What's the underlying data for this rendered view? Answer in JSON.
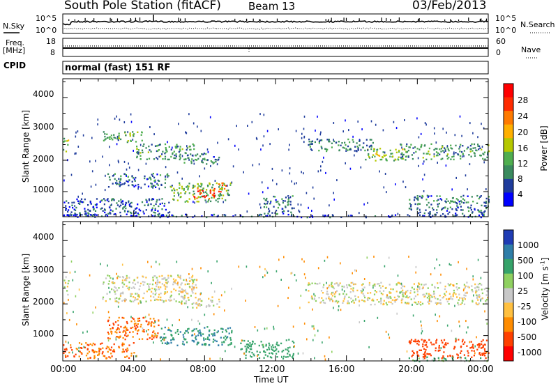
{
  "header": {
    "station": "South Pole Station (fitACF)",
    "beam": "Beam 13",
    "date": "03/Feb/2013"
  },
  "noise_panel": {
    "left_label": "N.Sky",
    "right_label": "N.Search",
    "left_ticks": [
      "10^5",
      "10^0"
    ],
    "right_ticks": [
      "10^5",
      "10^0"
    ]
  },
  "freq_panel": {
    "left_label_1": "Freq.",
    "left_label_2": "[MHz]",
    "right_label": "Nave",
    "left_ticks": [
      "18",
      "8"
    ],
    "right_ticks": [
      "60",
      "0"
    ]
  },
  "cpid_panel": {
    "label": "CPID",
    "text": "normal (fast) 151 RF"
  },
  "power_panel": {
    "ylabel": "Slant Range [km]",
    "yticks": [
      "4000",
      "3000",
      "2000",
      "1000"
    ],
    "colorbar_label": "Power [dB]",
    "colorbar_ticks": [
      "28",
      "24",
      "20",
      "16",
      "12",
      "8",
      "4"
    ],
    "colors": [
      "#0000ff",
      "#1f3c9c",
      "#3a8a5e",
      "#4fae4f",
      "#b5c800",
      "#ffb000",
      "#ff7a00",
      "#ff2b00",
      "#ff0000"
    ]
  },
  "velocity_panel": {
    "ylabel": "Slant Range [km]",
    "yticks": [
      "4000",
      "3000",
      "2000",
      "1000"
    ],
    "colorbar_label": "Velocity [m s",
    "colorbar_label_sup": "-1",
    "colorbar_label_end": "]",
    "colorbar_ticks": [
      "1000",
      "500",
      "100",
      "25",
      "-25",
      "-100",
      "-500",
      "-1000"
    ],
    "colors": [
      "#1f3cb4",
      "#2f7ea8",
      "#36a36a",
      "#8fd060",
      "#c8c8c8",
      "#ffc040",
      "#ff8c00",
      "#ff4000",
      "#ff0000"
    ]
  },
  "x_axis": {
    "ticks": [
      "00:00",
      "04:00",
      "08:00",
      "12:00",
      "16:00",
      "20:00",
      "00:00"
    ],
    "label": "Time UT"
  },
  "chart_data": {
    "type": "heatmap",
    "title": "South Pole Station (fitACF)",
    "subtitle": "Beam 13",
    "date": "03/Feb/2013",
    "xlabel": "Time UT",
    "ylabel": "Slant Range [km]",
    "xlim_hours": [
      0,
      24
    ],
    "ylim_km": [
      200,
      4600
    ],
    "grid": false,
    "panels": [
      {
        "name": "Power",
        "units": "dB",
        "colorbar_range": [
          0,
          32
        ],
        "regions": [
          {
            "t0": 0.0,
            "t1": 0.3,
            "r0": 2300,
            "r1": 2800,
            "value": 14
          },
          {
            "t0": 2.2,
            "t1": 4.5,
            "r0": 2600,
            "r1": 2950,
            "value": 12
          },
          {
            "t0": 4.0,
            "t1": 7.5,
            "r0": 2050,
            "r1": 2550,
            "value": 10
          },
          {
            "t0": 6.8,
            "t1": 8.8,
            "r0": 1900,
            "r1": 2250,
            "value": 8
          },
          {
            "t0": 2.5,
            "t1": 6.0,
            "r0": 1150,
            "r1": 1600,
            "value": 7
          },
          {
            "t0": 6.0,
            "t1": 9.5,
            "r0": 700,
            "r1": 1300,
            "value": 12
          },
          {
            "t0": 7.3,
            "t1": 8.6,
            "r0": 800,
            "r1": 1150,
            "value": 26
          },
          {
            "t0": 8.6,
            "t1": 9.2,
            "r0": 1000,
            "r1": 1300,
            "value": 22
          },
          {
            "t0": 0.0,
            "t1": 6.0,
            "r0": 250,
            "r1": 800,
            "value": 6
          },
          {
            "t0": 11.3,
            "t1": 13.0,
            "r0": 300,
            "r1": 900,
            "value": 8
          },
          {
            "t0": 13.8,
            "t1": 17.5,
            "r0": 2300,
            "r1": 2700,
            "value": 9
          },
          {
            "t0": 17.0,
            "t1": 19.5,
            "r0": 2000,
            "r1": 2400,
            "value": 14
          },
          {
            "t0": 19.0,
            "t1": 24.0,
            "r0": 2050,
            "r1": 2550,
            "value": 10
          },
          {
            "t0": 19.5,
            "t1": 24.0,
            "r0": 300,
            "r1": 900,
            "value": 8
          },
          {
            "t0": 0.0,
            "t1": 24.0,
            "r0": 200,
            "r1": 300,
            "value": 5
          }
        ]
      },
      {
        "name": "Velocity",
        "units": "m s^-1",
        "colorbar_range": [
          -1000,
          1000
        ],
        "regions": [
          {
            "t0": 0.0,
            "t1": 0.3,
            "r0": 2300,
            "r1": 2800,
            "value": 0
          },
          {
            "t0": 2.2,
            "t1": 7.5,
            "r0": 2050,
            "r1": 2950,
            "value": 0
          },
          {
            "t0": 6.8,
            "t1": 8.8,
            "r0": 1900,
            "r1": 2250,
            "value": 0
          },
          {
            "t0": 2.5,
            "t1": 5.5,
            "r0": 900,
            "r1": 1600,
            "value": -300
          },
          {
            "t0": 5.5,
            "t1": 9.5,
            "r0": 700,
            "r1": 1300,
            "value": 300
          },
          {
            "t0": 0.0,
            "t1": 4.0,
            "r0": 300,
            "r1": 800,
            "value": -300
          },
          {
            "t0": 10.0,
            "t1": 13.0,
            "r0": 300,
            "r1": 900,
            "value": 200
          },
          {
            "t0": 13.8,
            "t1": 24.0,
            "r0": 2000,
            "r1": 2700,
            "value": 0
          },
          {
            "t0": 19.5,
            "t1": 24.0,
            "r0": 300,
            "r1": 900,
            "value": -400
          },
          {
            "t0": 19.5,
            "t1": 24.0,
            "r0": 200,
            "r1": 350,
            "value": 60
          }
        ]
      }
    ]
  }
}
